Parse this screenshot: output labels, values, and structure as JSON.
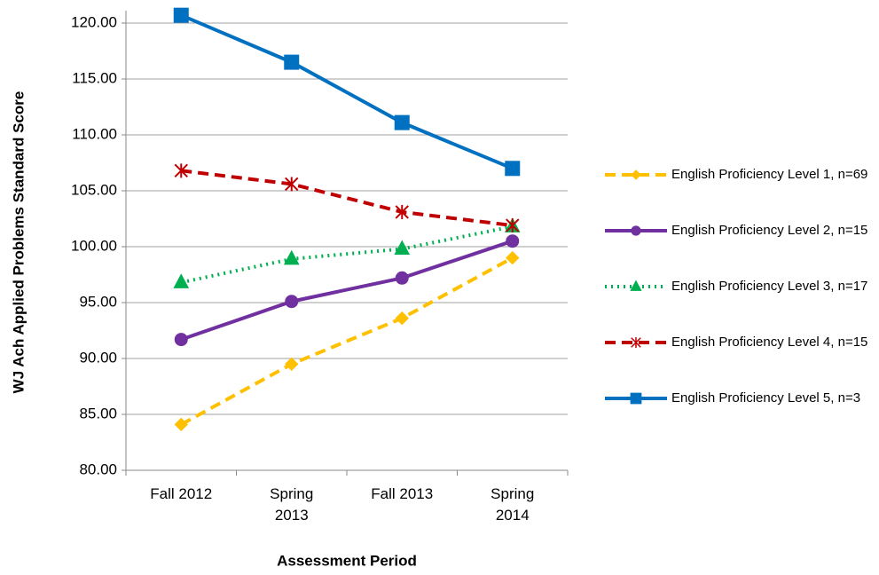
{
  "chart_data": {
    "type": "line",
    "y_label": "WJ Ach Applied Problems Standard Score",
    "x_label": "Assessment Period",
    "categories": [
      "Fall 2012",
      "Spring 2013",
      "Fall 2013",
      "Spring 2014"
    ],
    "ylim": [
      80,
      120
    ],
    "yticks": [
      {
        "value": 80,
        "label": "80.00"
      },
      {
        "value": 85,
        "label": "85.00"
      },
      {
        "value": 90,
        "label": "90.00"
      },
      {
        "value": 95,
        "label": "95.00"
      },
      {
        "value": 100,
        "label": "100.00"
      },
      {
        "value": 105,
        "label": "105.00"
      },
      {
        "value": 110,
        "label": "110.00"
      },
      {
        "value": 115,
        "label": "115.00"
      },
      {
        "value": 120,
        "label": "120.00"
      }
    ],
    "grid": true,
    "legend": "right",
    "series": [
      {
        "name": "English Proficiency Level 1, n=69",
        "color": "#ffc000",
        "dash": "dashed",
        "marker": "diamond",
        "values": [
          84.1,
          89.5,
          93.6,
          99.0
        ]
      },
      {
        "name": "English Proficiency Level 2, n=15",
        "color": "#7030a0",
        "dash": "solid",
        "marker": "circle",
        "values": [
          91.7,
          95.1,
          97.2,
          100.5
        ]
      },
      {
        "name": "English Proficiency Level 3, n=17",
        "color": "#00b050",
        "dash": "dotted",
        "marker": "triangle",
        "values": [
          96.8,
          98.9,
          99.8,
          101.8
        ]
      },
      {
        "name": "English Proficiency Level 4, n=15",
        "color": "#c00000",
        "dash": "dashed",
        "marker": "asterisk",
        "values": [
          106.8,
          105.6,
          103.1,
          101.9
        ]
      },
      {
        "name": "English Proficiency Level 5, n=3",
        "color": "#0070c0",
        "dash": "solid",
        "marker": "square",
        "values": [
          120.7,
          116.5,
          111.1,
          107.0
        ]
      }
    ]
  }
}
